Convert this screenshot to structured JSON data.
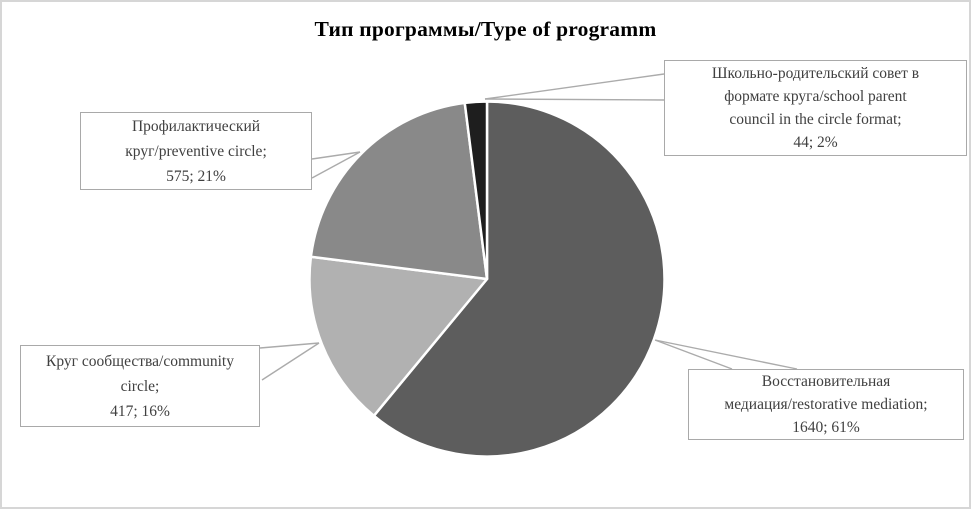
{
  "title": "Тип программы/Type of programm",
  "chart_data": {
    "type": "pie",
    "title": "Тип программы/Type of programm",
    "direction": "clockwise",
    "start_angle_deg": 0,
    "legend_position": "none (data callout labels)",
    "slices": [
      {
        "name": "restorative-mediation",
        "label": "Восстановительная медиация/restorative mediation",
        "value": 1640,
        "percent": 61,
        "color": "#5d5d5d"
      },
      {
        "name": "community-circle",
        "label": "Круг сообщества/community circle",
        "value": 417,
        "percent": 16,
        "color": "#b1b1b1"
      },
      {
        "name": "preventive-circle",
        "label": "Профилактический круг/preventive circle",
        "value": 575,
        "percent": 21,
        "color": "#898989"
      },
      {
        "name": "school-parent-council",
        "label": "Школьно-родительский совет в формате круга/school parent council in the circle format",
        "value": 44,
        "percent": 2,
        "color": "#1e1e1e"
      }
    ]
  },
  "callouts": {
    "school_parent": "Школьно-родительский совет в\nформате круга/school parent\ncouncil in the circle format;\n44; 2%",
    "preventive": "Профилактический\nкруг/preventive circle;\n575; 21%",
    "community": "Круг сообщества/community\ncircle;\n417; 16%",
    "restorative": "Восстановительная\nмедиация/restorative mediation;\n1640; 61%"
  },
  "colors": {
    "slice_restorative": "#5d5d5d",
    "slice_community": "#b1b1b1",
    "slice_preventive": "#898989",
    "slice_school_parent": "#1e1e1e",
    "slice_separator": "#ffffff",
    "callout_border": "#a9a9a9",
    "leader_line": "#ababab",
    "label_text": "#404040",
    "title_text": "#000000",
    "frame_border": "#d6d6d6"
  }
}
